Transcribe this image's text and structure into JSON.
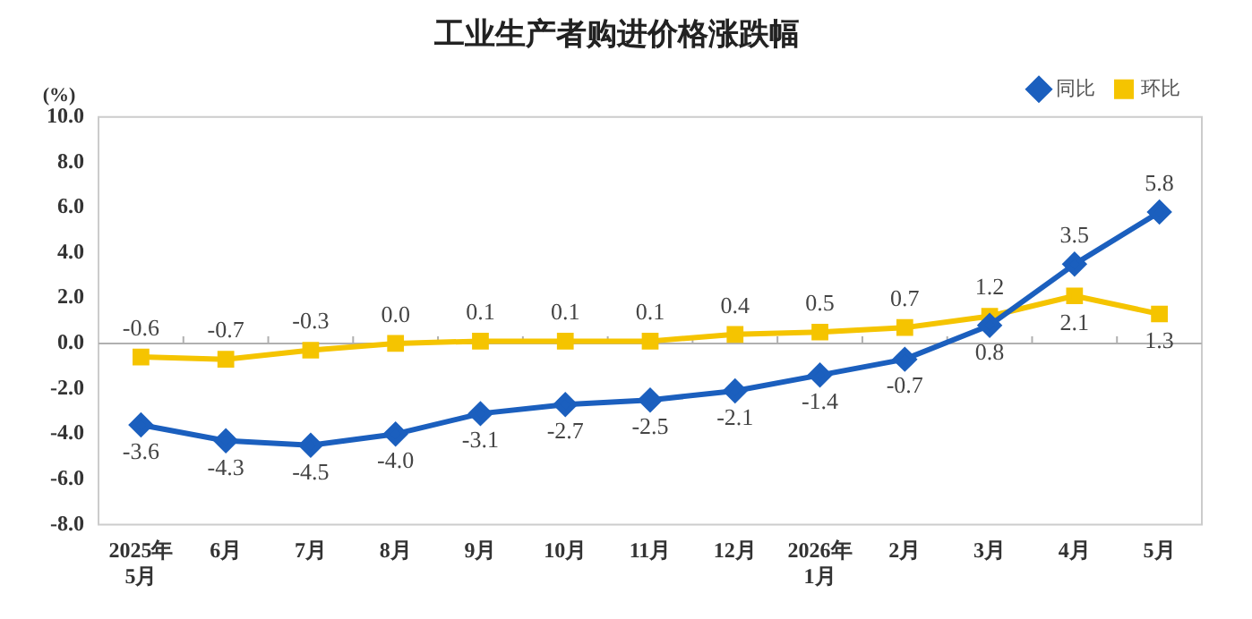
{
  "chart_data": {
    "type": "line",
    "title": "工业生产者购进价格涨跌幅",
    "ylabel": "(%)",
    "categories": [
      "2025年\n5月",
      "6月",
      "7月",
      "8月",
      "9月",
      "10月",
      "11月",
      "12月",
      "2026年\n1月",
      "2月",
      "3月",
      "4月",
      "5月"
    ],
    "series": [
      {
        "name": "同比",
        "color": "#1b5fbe",
        "marker": "diamond",
        "values": [
          -3.6,
          -4.3,
          -4.5,
          -4.0,
          -3.1,
          -2.7,
          -2.5,
          -2.1,
          -1.4,
          -0.7,
          0.8,
          3.5,
          5.8
        ],
        "value_labels": [
          "-3.6",
          "-4.3",
          "-4.5",
          "-4.0",
          "-3.1",
          "-2.7",
          "-2.5",
          "-2.1",
          "-1.4",
          "-0.7",
          "0.8",
          "3.5",
          "5.8"
        ]
      },
      {
        "name": "环比",
        "color": "#f5c400",
        "marker": "square",
        "values": [
          -0.6,
          -0.7,
          -0.3,
          0.0,
          0.1,
          0.1,
          0.1,
          0.4,
          0.5,
          0.7,
          1.2,
          2.1,
          1.3
        ],
        "value_labels": [
          "-0.6",
          "-0.7",
          "-0.3",
          "0.0",
          "0.1",
          "0.1",
          "0.1",
          "0.4",
          "0.5",
          "0.7",
          "1.2",
          "2.1",
          "1.3"
        ]
      }
    ],
    "ylim": [
      -8,
      10
    ],
    "yticks": [
      {
        "value": -8,
        "label": "-8.0"
      },
      {
        "value": -6,
        "label": "-6.0"
      },
      {
        "value": -4,
        "label": "-4.0"
      },
      {
        "value": -2,
        "label": "-2.0"
      },
      {
        "value": 0,
        "label": "0.0"
      },
      {
        "value": 2,
        "label": "2.0"
      },
      {
        "value": 4,
        "label": "4.0"
      },
      {
        "value": 6,
        "label": "6.0"
      },
      {
        "value": 8,
        "label": "8.0"
      },
      {
        "value": 10,
        "label": "10.0"
      }
    ],
    "ref_lines": [
      {
        "axis": "y",
        "value": 0,
        "color": "#b0b0b0"
      }
    ],
    "grid": false,
    "legend": "top right",
    "line_style": "solid"
  }
}
